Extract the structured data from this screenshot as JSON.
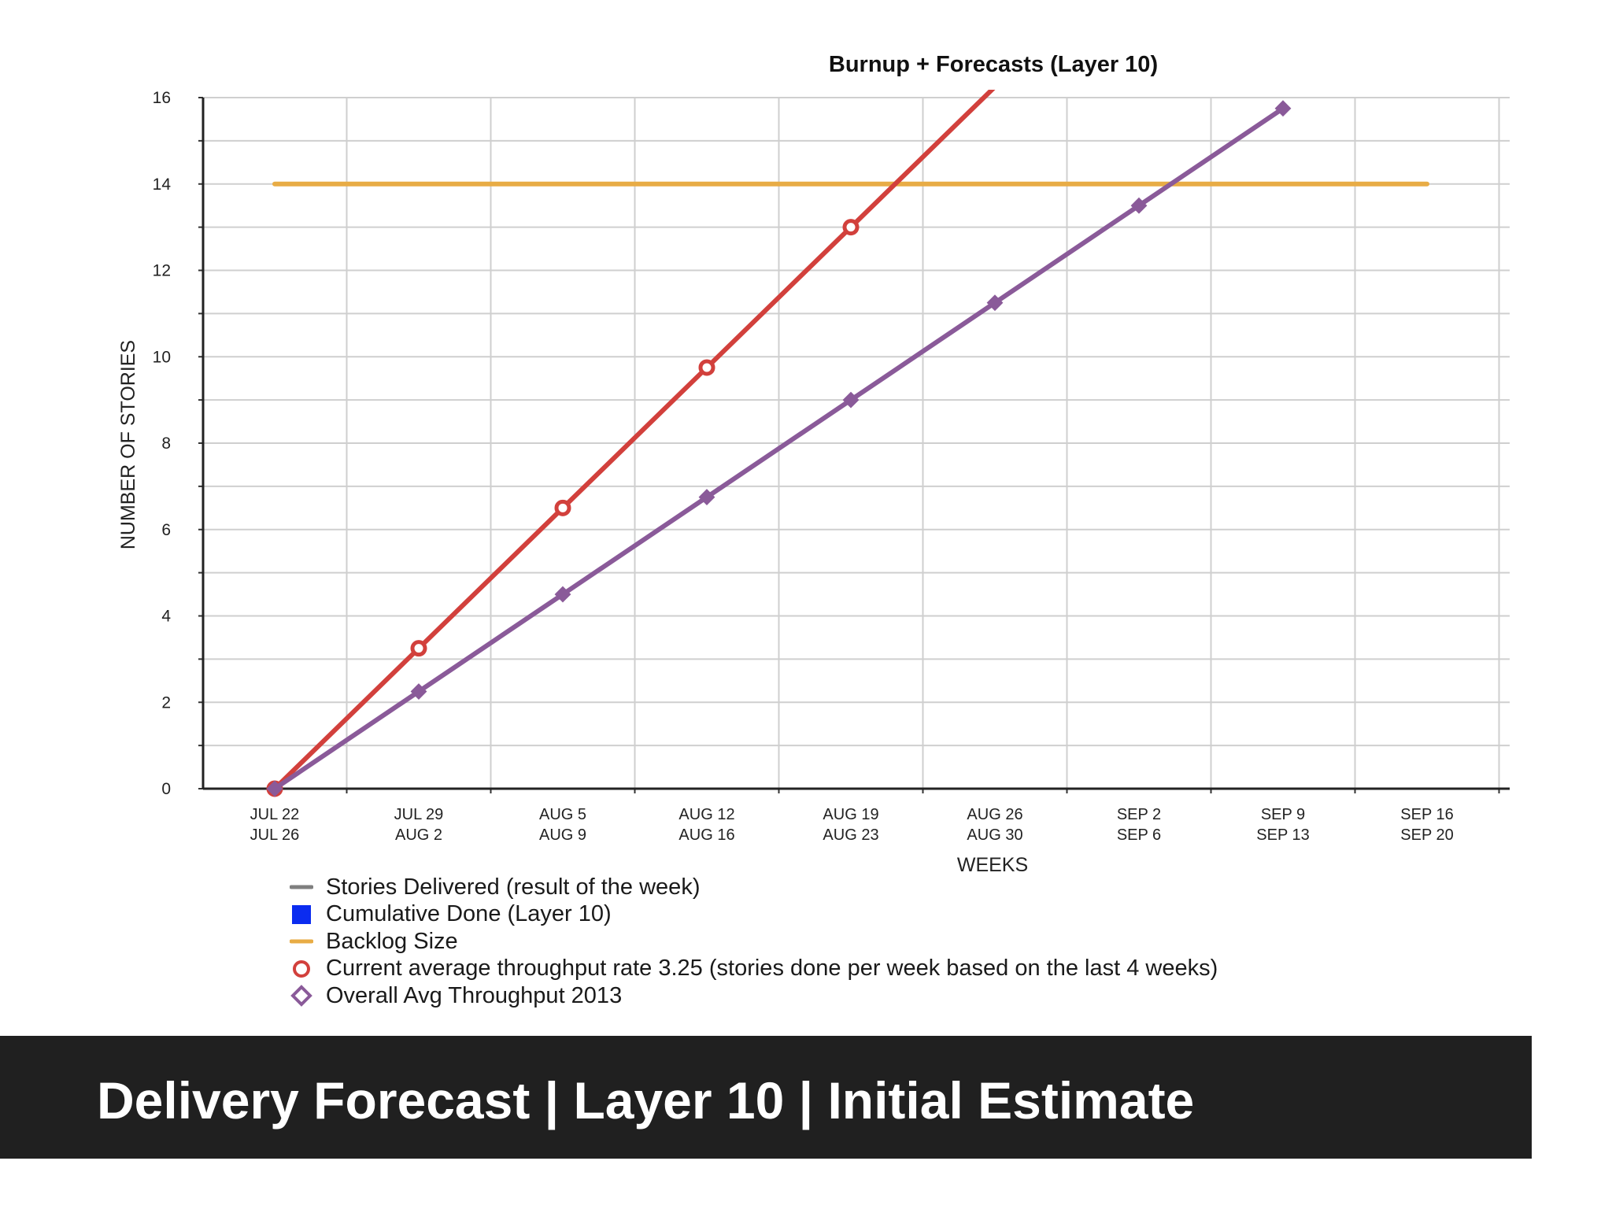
{
  "chart_data": {
    "type": "line",
    "title": "Burnup + Forecasts (Layer 10)",
    "xlabel": "WEEKS",
    "ylabel": "NUMBER OF STORIES",
    "ylim": [
      0,
      16
    ],
    "yticks": [
      0,
      2,
      4,
      6,
      8,
      10,
      12,
      14,
      16
    ],
    "grid": true,
    "legend_position": "bottom-left",
    "categories": [
      [
        "JUL 22",
        "JUL 26"
      ],
      [
        "JUL 29",
        "AUG 2"
      ],
      [
        "AUG 5",
        "AUG 9"
      ],
      [
        "AUG 12",
        "AUG 16"
      ],
      [
        "AUG 19",
        "AUG 23"
      ],
      [
        "AUG 26",
        "AUG 30"
      ],
      [
        "SEP 2",
        "SEP 6"
      ],
      [
        "SEP 9",
        "SEP 13"
      ],
      [
        "SEP 16",
        "SEP 20"
      ]
    ],
    "series": [
      {
        "name": "Backlog Size",
        "color": "#e8ac45",
        "marker": "none",
        "x": [
          0,
          8
        ],
        "y": [
          14,
          14
        ]
      },
      {
        "name": "Current average throughput rate 3.25 (stories done per week based on the last 4 weeks)",
        "color": "#d2403c",
        "marker": "circle",
        "x": [
          0,
          1,
          2,
          3,
          4,
          5
        ],
        "y": [
          0,
          3.25,
          6.5,
          9.75,
          13,
          16.25
        ]
      },
      {
        "name": "Overall Avg Throughput 2013",
        "color": "#8a5a99",
        "marker": "diamond",
        "x": [
          0,
          1,
          2,
          3,
          4,
          5,
          6,
          7
        ],
        "y": [
          0,
          2.25,
          4.5,
          6.75,
          9,
          11.25,
          13.5,
          15.75
        ]
      }
    ],
    "legend": [
      {
        "label": "Stories Delivered (result of the week)",
        "symbol": "line",
        "color": "#7f7f7f"
      },
      {
        "label": "Cumulative Done (Layer  10)",
        "symbol": "square",
        "color": "#0b2cf0"
      },
      {
        "label": "Backlog Size",
        "symbol": "line",
        "color": "#e8ac45"
      },
      {
        "label": "Current average throughput rate 3.25 (stories done per week based on the last 4 weeks)",
        "symbol": "circle",
        "color": "#d2403c"
      },
      {
        "label": "Overall Avg Throughput 2013",
        "symbol": "diamond",
        "color": "#8a5a99"
      }
    ]
  },
  "banner": {
    "title": "Delivery Forecast | Layer 10 | Initial Estimate",
    "background": "#202020",
    "text_color": "#ffffff"
  }
}
